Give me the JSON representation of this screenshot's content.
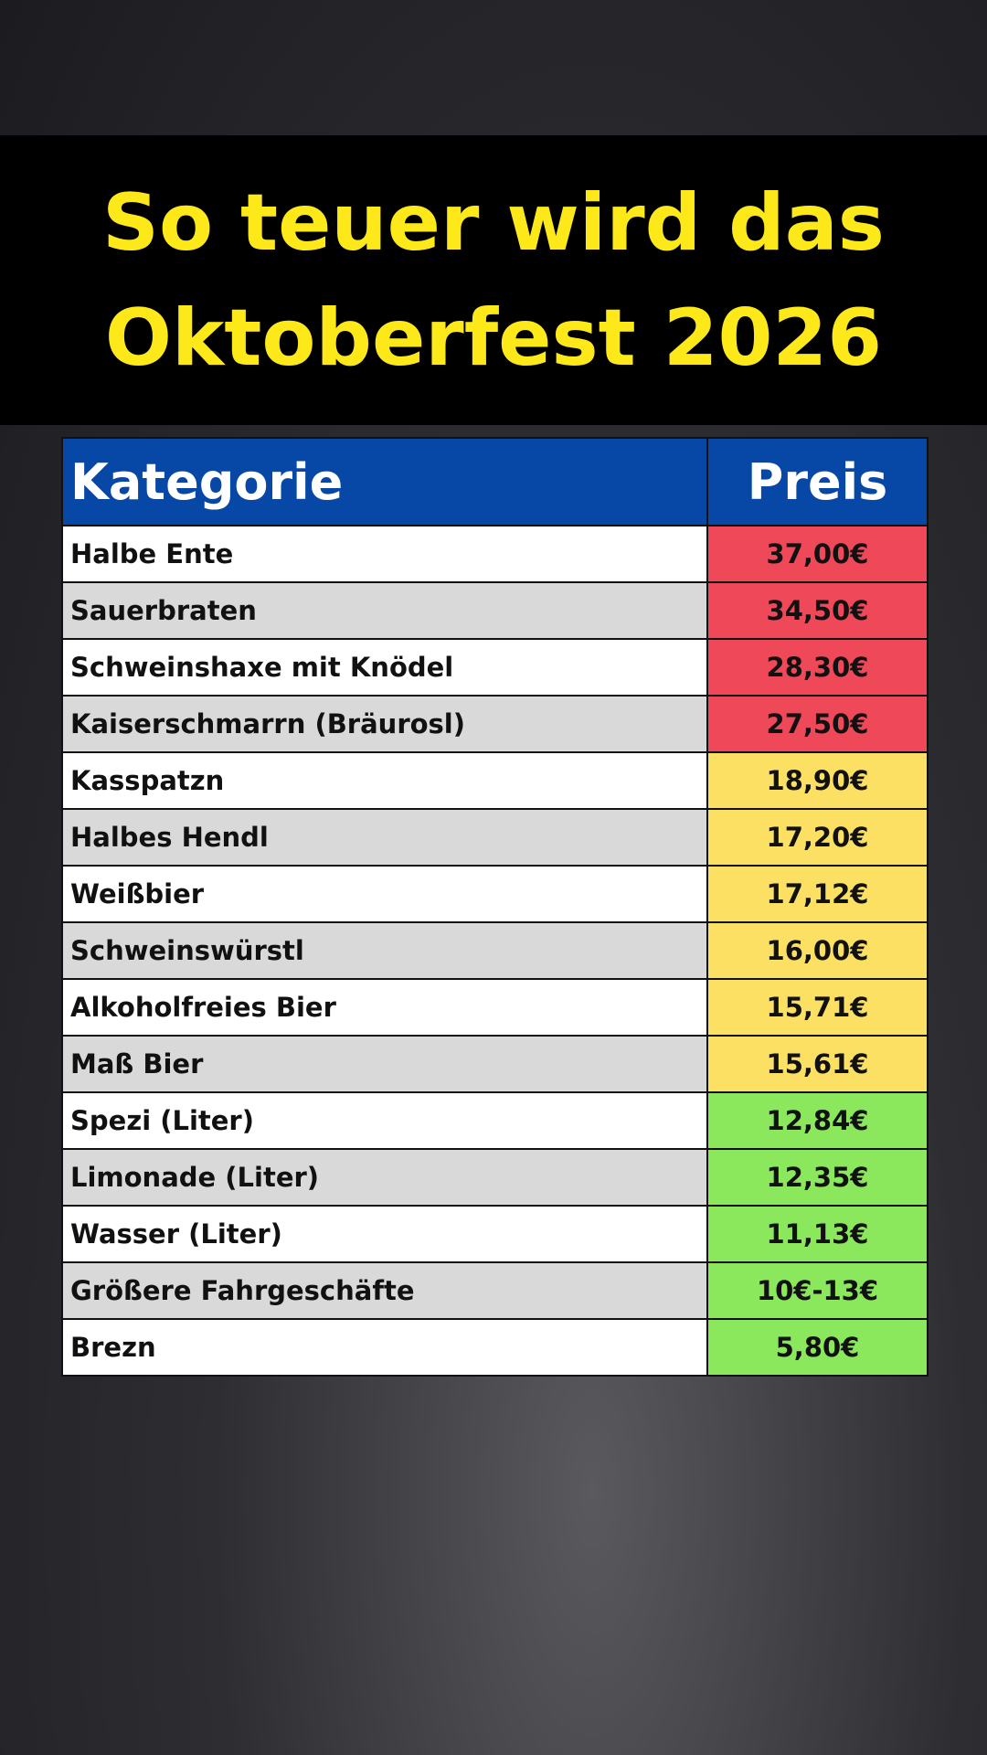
{
  "header": {
    "title_lines": [
      "So teuer wird das",
      "Oktoberfest 2026"
    ]
  },
  "table": {
    "header": [
      "Kategorie",
      "Preis"
    ],
    "rows": [
      [
        "Halbe Ente",
        "37,00€"
      ],
      [
        "Sauerbraten",
        "34,50€"
      ],
      [
        "Schweinshaxe mit Knödel",
        "28,30€"
      ],
      [
        "Kaiserschmarrn (Bräurosl)",
        "27,50€"
      ],
      [
        "Kasspatzn",
        "18,90€"
      ],
      [
        "Halbes Hendl",
        "17,20€"
      ],
      [
        "Weißbier",
        "17,12€"
      ],
      [
        "Schweinswürstl",
        "16,00€"
      ],
      [
        "Alkoholfreies Bier",
        "15,71€"
      ],
      [
        "Maß Bier",
        "15,61€"
      ],
      [
        "Spezi (Liter)",
        "12,84€"
      ],
      [
        "Limonade (Liter)",
        "12,35€"
      ],
      [
        "Wasser (Liter)",
        "11,13€"
      ],
      [
        "Größere Fahrgeschäfte",
        "10€-13€"
      ],
      [
        "Brezn",
        "5,80€"
      ]
    ],
    "price_colors": [
      "#ef4858",
      "#ef4858",
      "#ef4858",
      "#ef4858",
      "#fbe063",
      "#fbe063",
      "#fbe063",
      "#fbe063",
      "#fbe063",
      "#fbe063",
      "#8be85c",
      "#8be85c",
      "#8be85c",
      "#8be85c",
      "#8be85c"
    ]
  }
}
